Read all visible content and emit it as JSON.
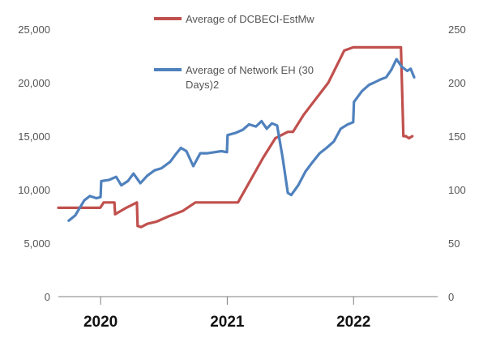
{
  "colors": {
    "series_red": "#C0504D",
    "series_blue": "#4F81BD",
    "axis": "#7F7F7F"
  },
  "chart_data": {
    "type": "line",
    "grid": false,
    "legend_placement": "top-center",
    "y_left": {
      "ylim": [
        0,
        25000
      ],
      "tick_values": [
        0,
        5000,
        10000,
        15000,
        20000,
        25000
      ],
      "tick_labels": [
        "0",
        "5,000",
        "10,000",
        "15,000",
        "20,000",
        "25,000"
      ]
    },
    "y_right": {
      "ylim": [
        0,
        250
      ],
      "tick_values": [
        0,
        50,
        100,
        150,
        200,
        250
      ],
      "tick_labels": [
        "0",
        "50",
        "100",
        "150",
        "200",
        "250"
      ]
    },
    "x_axis": {
      "xlim": [
        "2019-09-01",
        "2022-09-01"
      ],
      "ticks": [
        {
          "date": "2020-01-01",
          "label": "2020"
        },
        {
          "date": "2021-01-01",
          "label": "2021"
        },
        {
          "date": "2022-01-01",
          "label": "2022"
        }
      ]
    },
    "series": [
      {
        "name": "Average of DCBECI-EstMw",
        "axis": "left",
        "color_key": "series_red",
        "points": [
          [
            "2019-09-01",
            8300
          ],
          [
            "2019-12-31",
            8300
          ],
          [
            "2020-01-10",
            8800
          ],
          [
            "2020-02-10",
            8800
          ],
          [
            "2020-02-12",
            7700
          ],
          [
            "2020-03-15",
            8300
          ],
          [
            "2020-04-15",
            8800
          ],
          [
            "2020-04-17",
            6600
          ],
          [
            "2020-04-27",
            6500
          ],
          [
            "2020-05-15",
            6800
          ],
          [
            "2020-06-10",
            7000
          ],
          [
            "2020-07-15",
            7500
          ],
          [
            "2020-08-25",
            8000
          ],
          [
            "2020-10-01",
            8800
          ],
          [
            "2021-02-01",
            8800
          ],
          [
            "2021-04-15",
            13000
          ],
          [
            "2021-05-20",
            14800
          ],
          [
            "2021-06-25",
            15400
          ],
          [
            "2021-07-10",
            15400
          ],
          [
            "2021-08-10",
            17000
          ],
          [
            "2021-10-20",
            20000
          ],
          [
            "2021-12-05",
            23000
          ],
          [
            "2021-12-31",
            23300
          ],
          [
            "2022-05-18",
            23300
          ],
          [
            "2022-05-25",
            15000
          ],
          [
            "2022-06-01",
            15000
          ],
          [
            "2022-06-10",
            14800
          ],
          [
            "2022-06-20",
            15000
          ]
        ]
      },
      {
        "name": "Average of Network EH (30 Days)2",
        "axis": "right",
        "color_key": "series_blue",
        "points": [
          [
            "2019-10-01",
            71
          ],
          [
            "2019-10-20",
            76
          ],
          [
            "2019-11-15",
            90
          ],
          [
            "2019-12-01",
            94
          ],
          [
            "2019-12-20",
            92
          ],
          [
            "2020-01-01",
            93
          ],
          [
            "2020-01-03",
            108
          ],
          [
            "2020-01-25",
            109
          ],
          [
            "2020-02-15",
            112
          ],
          [
            "2020-03-01",
            104
          ],
          [
            "2020-03-20",
            108
          ],
          [
            "2020-04-05",
            115
          ],
          [
            "2020-04-25",
            106
          ],
          [
            "2020-05-15",
            113
          ],
          [
            "2020-06-05",
            118
          ],
          [
            "2020-06-25",
            120
          ],
          [
            "2020-07-20",
            126
          ],
          [
            "2020-08-05",
            133
          ],
          [
            "2020-08-20",
            139
          ],
          [
            "2020-09-05",
            136
          ],
          [
            "2020-09-25",
            122
          ],
          [
            "2020-10-15",
            134
          ],
          [
            "2020-11-05",
            134
          ],
          [
            "2020-11-25",
            135
          ],
          [
            "2020-12-15",
            136
          ],
          [
            "2020-12-31",
            135
          ],
          [
            "2021-01-02",
            151
          ],
          [
            "2021-01-25",
            153
          ],
          [
            "2021-02-15",
            156
          ],
          [
            "2021-03-05",
            161
          ],
          [
            "2021-03-25",
            159
          ],
          [
            "2021-04-10",
            164
          ],
          [
            "2021-04-25",
            157
          ],
          [
            "2021-05-10",
            162
          ],
          [
            "2021-05-25",
            160
          ],
          [
            "2021-06-10",
            130
          ],
          [
            "2021-06-25",
            97
          ],
          [
            "2021-07-05",
            95
          ],
          [
            "2021-07-25",
            104
          ],
          [
            "2021-08-15",
            117
          ],
          [
            "2021-09-05",
            126
          ],
          [
            "2021-09-25",
            134
          ],
          [
            "2021-10-15",
            139
          ],
          [
            "2021-11-05",
            145
          ],
          [
            "2021-11-25",
            157
          ],
          [
            "2021-12-15",
            161
          ],
          [
            "2021-12-31",
            163
          ],
          [
            "2022-01-02",
            182
          ],
          [
            "2022-01-25",
            192
          ],
          [
            "2022-02-15",
            198
          ],
          [
            "2022-03-01",
            200
          ],
          [
            "2022-03-20",
            203
          ],
          [
            "2022-04-05",
            205
          ],
          [
            "2022-04-20",
            212
          ],
          [
            "2022-05-05",
            222
          ],
          [
            "2022-05-20",
            215
          ],
          [
            "2022-06-05",
            211
          ],
          [
            "2022-06-15",
            213
          ],
          [
            "2022-06-25",
            205
          ]
        ]
      }
    ]
  }
}
